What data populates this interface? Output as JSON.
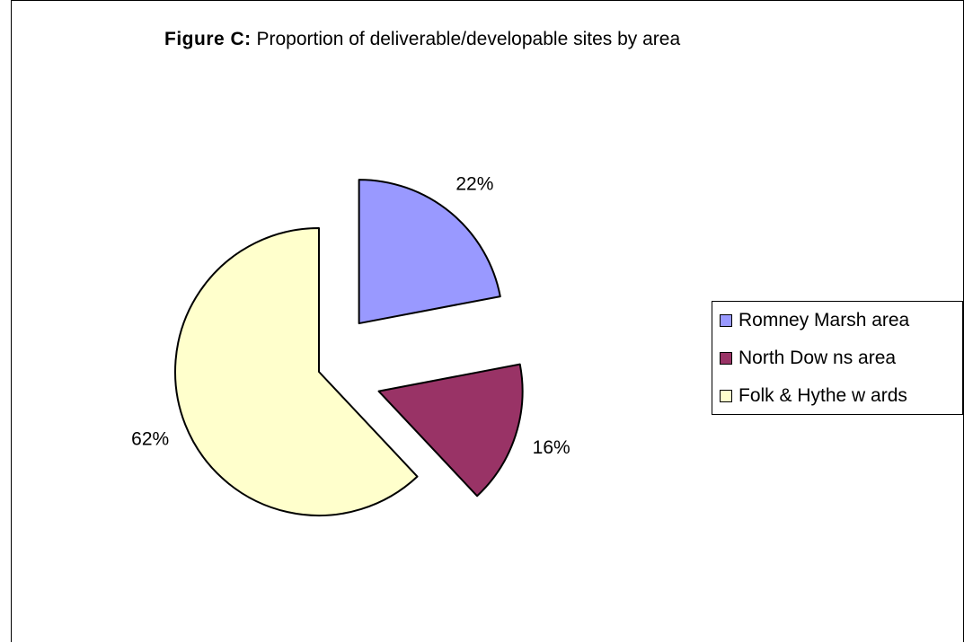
{
  "title": {
    "bold": "Figure C:",
    "rest": " Proportion of deliverable/developable sites by area"
  },
  "colors": {
    "romney": "#9999FF",
    "north_downs": "#993366",
    "folk_hythe": "#FFFFCC",
    "outline": "#000000"
  },
  "chart_data": {
    "type": "pie",
    "title": "Figure C: Proportion of deliverable/developable sites by area",
    "slices": [
      {
        "name": "Romney Marsh area",
        "value": 22,
        "label": "22%",
        "color": "#9999FF"
      },
      {
        "name": "North Dow ns area",
        "value": 16,
        "label": "16%",
        "color": "#993366"
      },
      {
        "name": "Folk & Hythe w ards",
        "value": 62,
        "label": "62%",
        "color": "#FFFFCC"
      }
    ],
    "start_angle": "12 o'clock",
    "direction": "clockwise",
    "exploded": true,
    "legend_position": "right"
  },
  "legend": {
    "items": [
      {
        "label": "Romney Marsh area",
        "color": "#9999FF"
      },
      {
        "label": "North Dow ns area",
        "color": "#993366"
      },
      {
        "label": "Folk & Hythe w ards",
        "color": "#FFFFCC"
      }
    ]
  }
}
